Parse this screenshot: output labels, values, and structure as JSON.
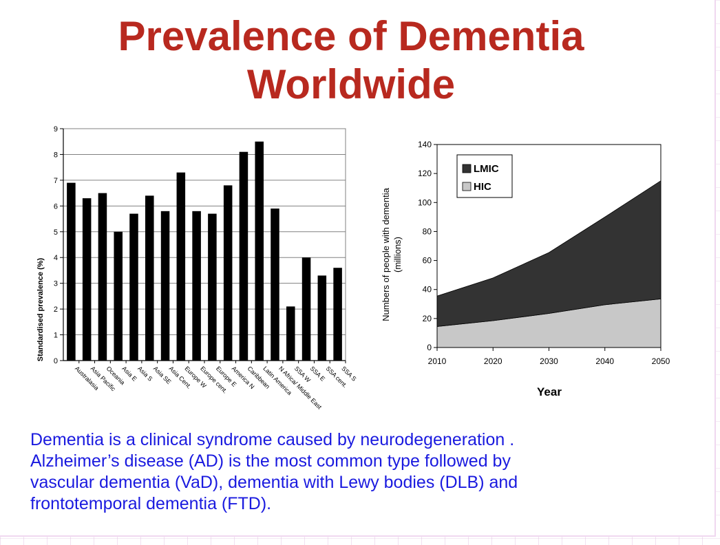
{
  "slide": {
    "title_line1": "Prevalence of Dementia",
    "title_line2": "Worldwide",
    "body_lines": [
      "Dementia is a clinical syndrome caused by neurodegeneration .",
      "Alzheimer’s disease (AD) is the most common type followed by",
      "vascular dementia (VaD), dementia with Lewy bodies (DLB) and",
      "frontotemporal dementia (FTD)."
    ],
    "colors": {
      "title": "#b8291f",
      "body": "#1a1adf"
    }
  },
  "chart_data": [
    {
      "type": "bar",
      "title": "",
      "xlabel": "",
      "ylabel": "Standardised prevalence (%)",
      "ylim": [
        0,
        9
      ],
      "yticks": [
        0,
        1,
        2,
        3,
        4,
        5,
        6,
        7,
        8,
        9
      ],
      "grid": true,
      "categories": [
        "Australasia",
        "Asia Pacific",
        "Oceania",
        "Asia E",
        "Asia S",
        "Asia SE",
        "Asia Cent.",
        "Europe W",
        "Europe cent.",
        "Europe E",
        "America N",
        "Caribbean",
        "Latin America",
        "N Africa/ Middle East",
        "SSA W",
        "SSA E",
        "SSA cent.",
        "SSA S"
      ],
      "values": [
        6.9,
        6.3,
        6.5,
        5.0,
        5.7,
        6.4,
        5.8,
        7.3,
        5.8,
        5.7,
        6.8,
        8.1,
        8.5,
        5.9,
        2.1,
        4.0,
        3.3,
        3.6
      ],
      "bar_color": "#000000"
    },
    {
      "type": "area",
      "stacked": true,
      "title": "",
      "xlabel": "Year",
      "ylabel_line1": "Numbers of people with dementia",
      "ylabel_line2": "(millions)",
      "x": [
        2010,
        2020,
        2030,
        2040,
        2050
      ],
      "xlim": [
        2010,
        2050
      ],
      "ylim": [
        0,
        140
      ],
      "yticks": [
        0,
        20,
        40,
        60,
        80,
        100,
        120,
        140
      ],
      "legend_position": "top-left",
      "series": [
        {
          "name": "HIC",
          "values": [
            14.5,
            18.5,
            23.5,
            29.5,
            33.5
          ],
          "color": "#c8c8c8"
        },
        {
          "name": "LMIC",
          "values": [
            21,
            29.5,
            42,
            60.5,
            81.5
          ],
          "color": "#333333"
        }
      ]
    }
  ]
}
